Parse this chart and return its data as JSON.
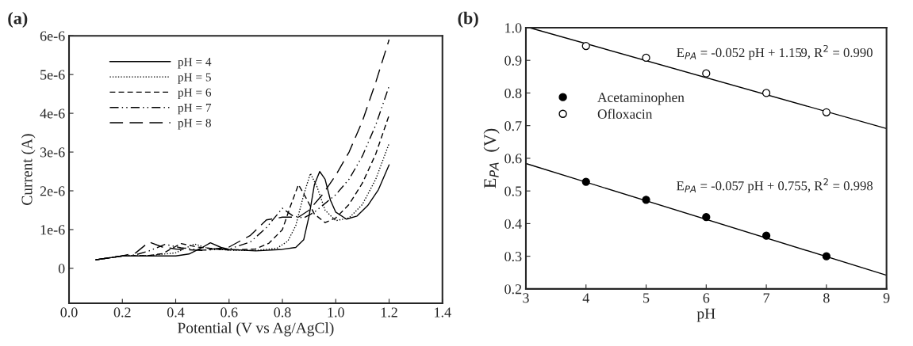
{
  "chart_data": [
    {
      "type": "line",
      "title": "(a)",
      "xlabel": "Potential (V vs Ag/AgCl)",
      "ylabel": "Current (A)",
      "xlim": [
        0,
        1.4
      ],
      "xticks": [
        {
          "value": 0,
          "label": "0.0"
        },
        0.2,
        0.4,
        0.6,
        0.8,
        {
          "value": 1,
          "label": "1.0"
        },
        1.2,
        1.4
      ],
      "ylim": [
        -9e-07,
        6e-06
      ],
      "yticks": [
        0,
        {
          "value": 1e-06,
          "label": "1e-6"
        },
        {
          "value": 2e-06,
          "label": "2e-6"
        },
        {
          "value": 3e-06,
          "label": "3e-6"
        },
        {
          "value": 4e-06,
          "label": "4e-6"
        },
        {
          "value": 5e-06,
          "label": "5e-6"
        },
        {
          "value": 6e-06,
          "label": "6e-6"
        }
      ],
      "legend": "top left",
      "grid": false,
      "series": [
        {
          "name": "pH = 4",
          "color": "#000000",
          "line_style": "solid",
          "x": [
            0.1,
            0.2,
            0.4,
            0.45,
            0.5,
            0.53,
            0.57,
            0.6,
            0.7,
            0.8,
            0.85,
            0.88,
            0.9,
            0.92,
            0.94,
            0.96,
            0.98,
            1.0,
            1.04,
            1.08,
            1.12,
            1.16,
            1.2
          ],
          "values": [
            2.2e-07,
            3.2e-07,
            3.2e-07,
            3.7e-07,
            5.4e-07,
            6.6e-07,
            5.4e-07,
            4.9e-07,
            4.5e-07,
            4.9e-07,
            5.4e-07,
            7.4e-07,
            1.35e-06,
            2.16e-06,
            2.5e-06,
            2.3e-06,
            1.76e-06,
            1.45e-06,
            1.27e-06,
            1.35e-06,
            1.62e-06,
            2.03e-06,
            2.67e-06
          ]
        },
        {
          "name": "pH = 5",
          "color": "#000000",
          "line_style": "dotted",
          "x": [
            0.1,
            0.2,
            0.3,
            0.4,
            0.47,
            0.52,
            0.6,
            0.7,
            0.78,
            0.82,
            0.85,
            0.88,
            0.905,
            0.93,
            0.96,
            1.0,
            1.05,
            1.1,
            1.15,
            1.2
          ],
          "values": [
            2.2e-07,
            3.2e-07,
            3.3e-07,
            4e-07,
            6.3e-07,
            5.2e-07,
            4.7e-07,
            4.6e-07,
            5.2e-07,
            7e-07,
            1.1e-06,
            1.9e-06,
            2.45e-06,
            2.1e-06,
            1.5e-06,
            1.23e-06,
            1.3e-06,
            1.65e-06,
            2.3e-06,
            3.22e-06
          ]
        },
        {
          "name": "pH = 6",
          "color": "#000000",
          "line_style": "dashed",
          "x": [
            0.1,
            0.2,
            0.3,
            0.35,
            0.42,
            0.48,
            0.55,
            0.6,
            0.7,
            0.75,
            0.8,
            0.83,
            0.86,
            0.89,
            0.92,
            0.96,
            1.0,
            1.05,
            1.1,
            1.15,
            1.2
          ],
          "values": [
            2.2e-07,
            3.2e-07,
            3.3e-07,
            3.8e-07,
            6.4e-07,
            5.5e-07,
            5e-07,
            4.7e-07,
            5e-07,
            6.5e-07,
            1e-06,
            1.6e-06,
            2.16e-06,
            1.8e-06,
            1.4e-06,
            1.18e-06,
            1.3e-06,
            1.65e-06,
            2.2e-06,
            2.95e-06,
            3.95e-06
          ]
        },
        {
          "name": "pH = 7",
          "color": "#000000",
          "line_style": "dashdotdot",
          "x": [
            0.1,
            0.2,
            0.25,
            0.3,
            0.36,
            0.42,
            0.5,
            0.6,
            0.68,
            0.74,
            0.8,
            0.84,
            0.88,
            0.92,
            1.0,
            1.05,
            1.1,
            1.15,
            1.2
          ],
          "values": [
            2.2e-07,
            3.2e-07,
            3.5e-07,
            4.5e-07,
            6.2e-07,
            5.3e-07,
            4.7e-07,
            5e-07,
            6.8e-07,
            1.05e-06,
            1.55e-06,
            1.35e-06,
            1.3e-06,
            1.45e-06,
            1.9e-06,
            2.3e-06,
            2.9e-06,
            3.7e-06,
            4.7e-06
          ]
        },
        {
          "name": "pH = 8",
          "color": "#000000",
          "line_style": "longdash",
          "x": [
            0.1,
            0.2,
            0.25,
            0.3,
            0.35,
            0.4,
            0.5,
            0.6,
            0.68,
            0.74,
            0.8,
            0.86,
            0.9,
            0.95,
            1.0,
            1.05,
            1.1,
            1.15,
            1.2
          ],
          "values": [
            2.2e-07,
            3.2e-07,
            4e-07,
            6.8e-07,
            5.5e-07,
            5e-07,
            4.6e-07,
            5.5e-07,
            8.5e-07,
            1.25e-06,
            1.32e-06,
            1.32e-06,
            1.5e-06,
            1.9e-06,
            2.4e-06,
            3e-06,
            3.8e-06,
            4.8e-06,
            5.9e-06
          ]
        }
      ]
    },
    {
      "type": "scatter",
      "title": "(b)",
      "xlabel": "pH",
      "ylabel": "E$_{PA}$  (V)",
      "xlim": [
        3,
        9
      ],
      "xticks": [
        3,
        4,
        5,
        6,
        7,
        8,
        9
      ],
      "ylim": [
        0.2,
        1.0
      ],
      "yticks": [
        0.2,
        0.3,
        0.4,
        0.5,
        0.6,
        0.7,
        0.8,
        0.9,
        {
          "value": 1.0,
          "label": "1.0"
        }
      ],
      "legend": "top left",
      "grid": false,
      "series": [
        {
          "name": "Acetaminophen",
          "color": "#000000",
          "marker": "circle",
          "x": [
            4,
            5,
            6,
            7,
            8
          ],
          "values": [
            0.528,
            0.473,
            0.42,
            0.363,
            0.3
          ]
        },
        {
          "name": "Ofloxacin",
          "color": "#ffffff",
          "marker": "circle",
          "x": [
            4,
            5,
            6,
            7,
            8
          ],
          "values": [
            0.944,
            0.908,
            0.86,
            0.8,
            0.741
          ]
        },
        {
          "type": "line",
          "color": "#000000",
          "x": [
            3,
            9
          ],
          "values": [
            0.584,
            0.242
          ]
        },
        {
          "type": "line",
          "color": "#000000",
          "x": [
            3.06,
            9
          ],
          "values": [
            1.0,
            0.691
          ]
        }
      ],
      "annotations": [
        "E$_{PA}$ = -0.052 pH + 1.159, R$^{2}$ = 0.990",
        "E$_{PA}$ = -0.057 pH + 0.755, R$^{2}$ = 0.998"
      ]
    }
  ]
}
